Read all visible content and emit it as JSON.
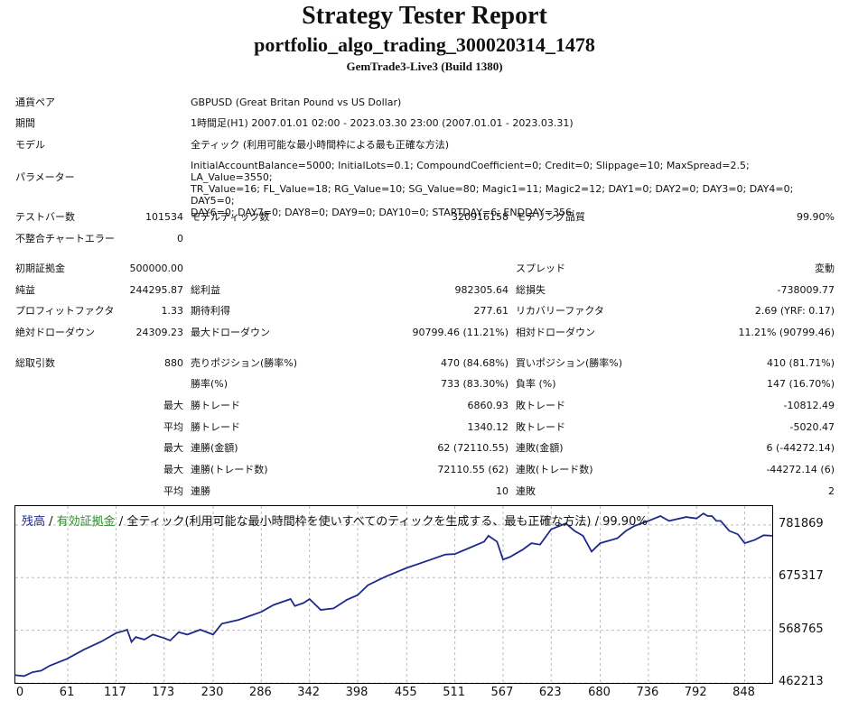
{
  "header": {
    "title": "Strategy Tester Report",
    "subtitle": "portfolio_algo_trading_300020314_1478",
    "server": "GemTrade3-Live3 (Build 1380)"
  },
  "info": {
    "pair_label": "通貨ペア",
    "pair_value": "GBPUSD (Great Britan Pound vs US Dollar)",
    "period_label": "期間",
    "period_value": "1時間足(H1) 2007.01.01 02:00 - 2023.03.30 23:00 (2007.01.01 - 2023.03.31)",
    "model_label": "モデル",
    "model_value": "全ティック (利用可能な最小時間枠による最も正確な方法)",
    "param_label": "パラメーター",
    "param_line1": "InitialAccountBalance=5000; InitialLots=0.1; CompoundCoefficient=0; Credit=0; Slippage=10; MaxSpread=2.5; LA_Value=3550;",
    "param_line2": "TR_Value=16; FL_Value=18; RG_Value=10; SG_Value=80; Magic1=11; Magic2=12; DAY1=0; DAY2=0; DAY3=0; DAY4=0; DAY5=0;",
    "param_line3": "DAY6=0; DAY7=0; DAY8=0; DAY9=0; DAY10=0; STARTDAY=6; ENDDAY=356;"
  },
  "stats": {
    "bars_label": "テストバー数",
    "bars": "101534",
    "ticks_label": "モデルティック数",
    "ticks": "320916158",
    "quality_label": "モデリング品質",
    "quality": "99.90%",
    "mismatch_label": "不整合チャートエラー",
    "mismatch": "0",
    "deposit_label": "初期証拠金",
    "deposit": "500000.00",
    "spread_label": "スプレッド",
    "spread": "変動",
    "net_label": "純益",
    "net": "244295.87",
    "gross_profit_label": "総利益",
    "gross_profit": "982305.64",
    "gross_loss_label": "総損失",
    "gross_loss": "-738009.77",
    "pf_label": "プロフィットファクタ",
    "pf": "1.33",
    "expected_label": "期待利得",
    "expected": "277.61",
    "recovery_label": "リカバリーファクタ",
    "recovery": "2.69 (YRF: 0.17)",
    "abs_dd_label": "絶対ドローダウン",
    "abs_dd": "24309.23",
    "max_dd_label": "最大ドローダウン",
    "max_dd": "90799.46 (11.21%)",
    "rel_dd_label": "相対ドローダウン",
    "rel_dd": "11.21% (90799.46)",
    "trades_label": "総取引数",
    "trades": "880",
    "short_label": "売りポジション(勝率%)",
    "short": "470 (84.68%)",
    "long_label": "買いポジション(勝率%)",
    "long": "410 (81.71%)",
    "win_pct_label": "勝率(%)",
    "win_pct": "733 (83.30%)",
    "loss_pct_label": "負率 (%)",
    "loss_pct": "147 (16.70%)",
    "max_label": "最大",
    "avg_label": "平均",
    "win_trade_label": "勝トレード",
    "loss_trade_label": "敗トレード",
    "max_win": "6860.93",
    "max_loss": "-10812.49",
    "avg_win": "1340.12",
    "avg_loss": "-5020.47",
    "cons_win_amt_label": "連勝(金額)",
    "cons_win_amt": "62 (72110.55)",
    "cons_loss_amt_label": "連敗(金額)",
    "cons_loss_amt": "6 (-44272.14)",
    "cons_win_cnt_label": "連勝(トレード数)",
    "cons_win_cnt": "72110.55 (62)",
    "cons_loss_cnt_label": "連敗(トレード数)",
    "cons_loss_cnt": "-44272.14 (6)",
    "avg_cons_win_label": "連勝",
    "avg_cons_win": "10",
    "avg_cons_loss_label": "連敗",
    "avg_cons_loss": "2"
  },
  "legend": {
    "balance": "残高",
    "sep1": " / ",
    "equity": "有効証拠金",
    "rest": " / 全ティック(利用可能な最小時間枠を使いすべてのティックを生成する、最も正確な方法) / 99.90%",
    "balance_color": "#1e2a8a",
    "equity_color": "#2e8b2e"
  },
  "chart_data": {
    "type": "line",
    "ylim": [
      462213,
      820000
    ],
    "yticks": [
      "781869",
      "675317",
      "568765",
      "462213"
    ],
    "ytick_values": [
      781869,
      675317,
      568765,
      462213
    ],
    "xticks": [
      "0",
      "61",
      "117",
      "173",
      "230",
      "286",
      "342",
      "398",
      "455",
      "511",
      "567",
      "623",
      "680",
      "736",
      "792",
      "848"
    ],
    "xtick_values": [
      0,
      61,
      117,
      173,
      230,
      286,
      342,
      398,
      455,
      511,
      567,
      623,
      680,
      736,
      792,
      848
    ],
    "xmax": 880,
    "grid": true,
    "series": [
      {
        "color": "#1e2a8a",
        "x": [
          0,
          10,
          20,
          30,
          40,
          60,
          80,
          100,
          117,
          125,
          130,
          135,
          140,
          150,
          160,
          173,
          180,
          190,
          200,
          215,
          230,
          240,
          260,
          286,
          300,
          320,
          325,
          335,
          342,
          355,
          370,
          385,
          398,
          410,
          430,
          455,
          480,
          500,
          511,
          530,
          545,
          550,
          560,
          567,
          575,
          590,
          600,
          610,
          623,
          640,
          650,
          660,
          670,
          680,
          700,
          710,
          720,
          736,
          750,
          760,
          780,
          792,
          800,
          805,
          810,
          815,
          820,
          830,
          840,
          848,
          860,
          870,
          880
        ],
        "y": [
          478000,
          476000,
          484000,
          487000,
          497000,
          511000,
          530000,
          546000,
          563000,
          567000,
          570000,
          545000,
          555000,
          550000,
          560000,
          553000,
          548000,
          565000,
          560000,
          570000,
          560000,
          582000,
          590000,
          606000,
          620000,
          632000,
          618000,
          624000,
          632000,
          610000,
          613000,
          630000,
          640000,
          660000,
          677000,
          695000,
          710000,
          722000,
          723000,
          737000,
          748000,
          760000,
          748000,
          712000,
          717000,
          732000,
          745000,
          742000,
          773000,
          785000,
          770000,
          760000,
          728000,
          745000,
          755000,
          770000,
          780000,
          790000,
          800000,
          790000,
          798000,
          795000,
          805000,
          800000,
          800000,
          790000,
          790000,
          770000,
          763000,
          745000,
          752000,
          761000,
          760000
        ]
      }
    ]
  }
}
